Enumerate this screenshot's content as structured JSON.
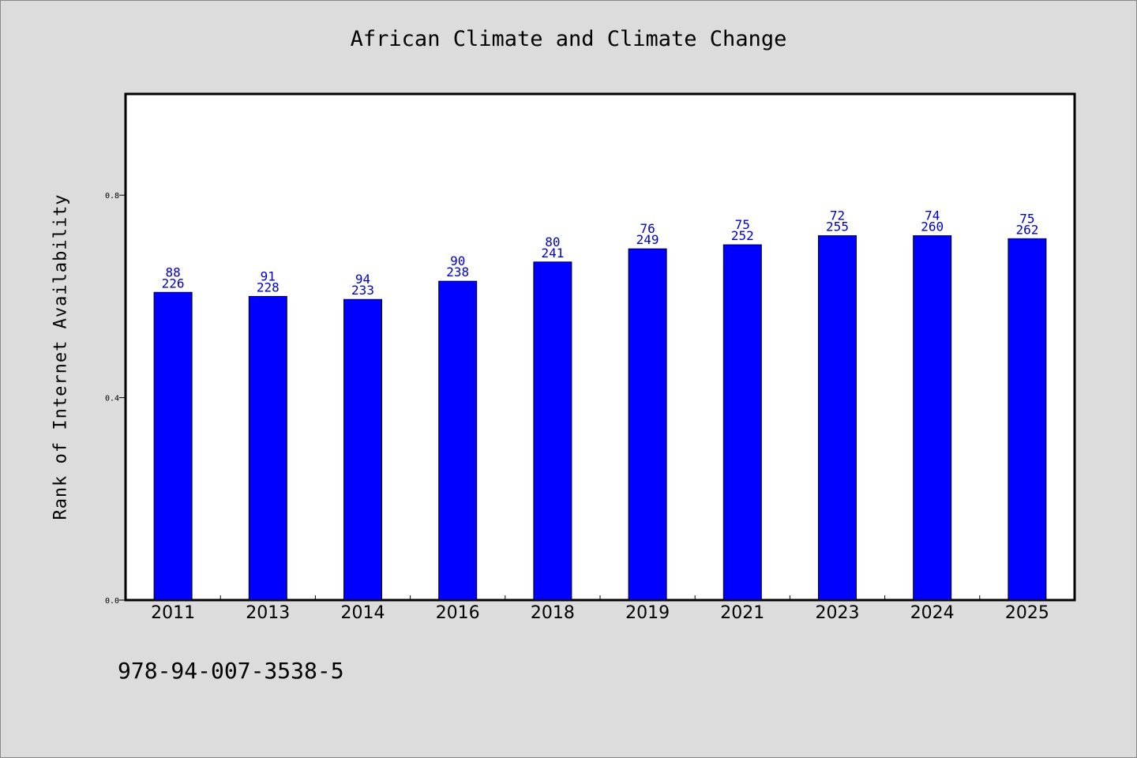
{
  "chart_data": {
    "type": "bar",
    "title": "African Climate and Climate Change",
    "xlabel": "",
    "ylabel": "Rank of Internet Availability",
    "ylim": [
      0,
      1.0
    ],
    "yticks": [
      0.0,
      0.4,
      0.8
    ],
    "ytick_labels": [
      "0.0",
      "0.4",
      "0.8"
    ],
    "categories": [
      "2011",
      "2013",
      "2014",
      "2016",
      "2018",
      "2019",
      "2021",
      "2023",
      "2024",
      "2025"
    ],
    "values": [
      0.608,
      0.6,
      0.594,
      0.63,
      0.668,
      0.694,
      0.702,
      0.72,
      0.72,
      0.714
    ],
    "labels_rank": [
      "88",
      "91",
      "94",
      "90",
      "80",
      "76",
      "75",
      "72",
      "74",
      "75"
    ],
    "labels_total": [
      "226",
      "228",
      "233",
      "238",
      "241",
      "249",
      "252",
      "255",
      "260",
      "262"
    ],
    "bar_color": "#0000ff",
    "label_color": "#0000cc",
    "grid": false
  },
  "footnote": "978-94-007-3538-5"
}
